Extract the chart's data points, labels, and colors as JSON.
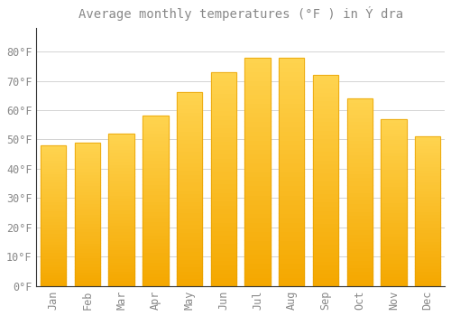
{
  "title": "Average monthly temperatures (°F ) in Ý dra",
  "months": [
    "Jan",
    "Feb",
    "Mar",
    "Apr",
    "May",
    "Jun",
    "Jul",
    "Aug",
    "Sep",
    "Oct",
    "Nov",
    "Dec"
  ],
  "values": [
    48,
    49,
    52,
    58,
    66,
    73,
    78,
    78,
    72,
    64,
    57,
    51
  ],
  "bar_color_top": "#FFC84A",
  "bar_color_bottom": "#F5A800",
  "bar_edge_color": "#E8A000",
  "background_color": "#FFFFFF",
  "grid_color": "#CCCCCC",
  "ylim": [
    0,
    88
  ],
  "yticks": [
    0,
    10,
    20,
    30,
    40,
    50,
    60,
    70,
    80
  ],
  "ytick_labels": [
    "0°F",
    "10°F",
    "20°F",
    "30°F",
    "40°F",
    "50°F",
    "60°F",
    "70°F",
    "80°F"
  ],
  "title_fontsize": 10,
  "tick_fontsize": 8.5,
  "font_color": "#888888",
  "axis_color": "#333333"
}
